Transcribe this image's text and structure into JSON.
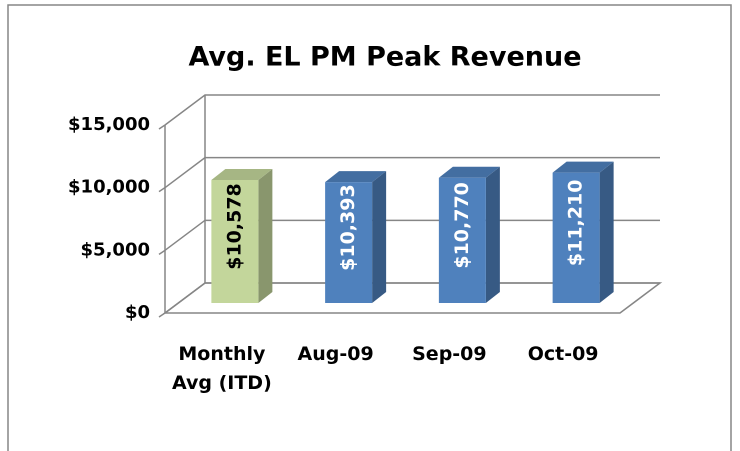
{
  "chart_data": {
    "type": "bar3d",
    "title": "Avg. EL PM Peak Revenue",
    "categories": [
      "Monthly Avg (ITD)",
      "Aug-09",
      "Sep-09",
      "Oct-09"
    ],
    "values": [
      10578,
      10393,
      10770,
      11210
    ],
    "value_labels": [
      "$10,578",
      "$10,393",
      "$10,770",
      "$11,210"
    ],
    "colors": [
      "#c3d69b",
      "#4f81bd",
      "#4f81bd",
      "#4f81bd"
    ],
    "ylim": [
      0,
      15000
    ],
    "yticks": [
      {
        "value": 0,
        "label": "$0"
      },
      {
        "value": 5000,
        "label": "$5,000"
      },
      {
        "value": 10000,
        "label": "$10,000"
      },
      {
        "value": 15000,
        "label": "$15,000"
      }
    ],
    "grid": true
  }
}
